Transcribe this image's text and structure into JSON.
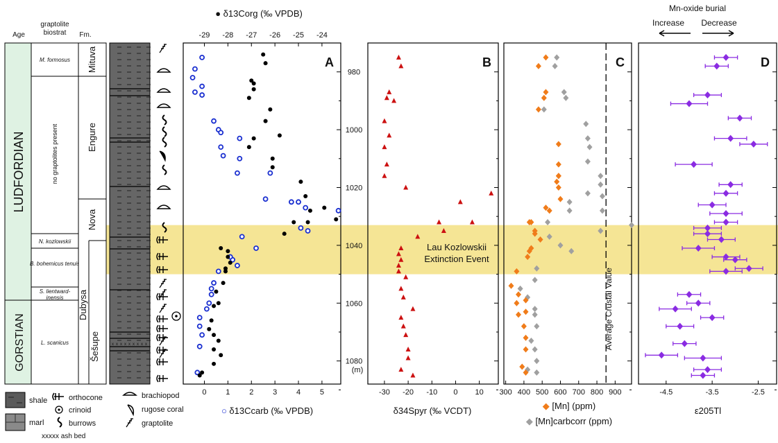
{
  "column_headers": {
    "age": "Age",
    "graptolite": [
      "graptolite",
      "biostrat"
    ],
    "formation": "Fm."
  },
  "ages": [
    "LUDFORDIAN",
    "GORSTIAN"
  ],
  "graptolite_zones": [
    "M. formosus",
    "no graptolites present",
    "N. kozlowskii",
    "B. bohemicus tenuis",
    "S. lientward-",
    "inensis",
    "L. scanicus"
  ],
  "formations": [
    "Mituva",
    "Engure",
    "Nova",
    "Dubysa",
    "Šešupe"
  ],
  "legend": {
    "shale": "shale",
    "marl": "marl",
    "orthocone": "orthocone",
    "crinoid": "crinoid",
    "burrows": "burrows",
    "ash_bed": "xxxxx ash bed",
    "brachiopod": "brachiopod",
    "rugose_coral": "rugose coral",
    "graptolite": "graptolite"
  },
  "depth_axis": {
    "ticks": [
      "980",
      "1000",
      "1020",
      "1040",
      "1060",
      "1080"
    ],
    "unit": "(m)"
  },
  "event": {
    "line1": "Lau Kozlowskii",
    "line2": "Extinction Event",
    "depth_range": [
      1033,
      1050
    ]
  },
  "crustal_label": "Average Crustal Value",
  "mn_oxide": {
    "title": "Mn-oxide burial",
    "increase": "Increase",
    "decrease": "Decrease"
  },
  "colors": {
    "corg": "#000000",
    "ccarb": "#1a2fd0",
    "spyr": "#cc1111",
    "mn": "#f07c1a",
    "mncorr": "#a0a0a0",
    "tl": "#8a2be2",
    "event_band": "#f3df7a",
    "age_fill": "#dff2e3"
  },
  "chart_data": [
    {
      "type": "scatter",
      "panel": "A",
      "xlabel": "δ13Ccarb (‰ VPDB)",
      "x2label": "δ13Corg (‰ VPDB)",
      "xticks": [
        "0",
        "1",
        "2",
        "3",
        "4",
        "5"
      ],
      "x2ticks": [
        "-29",
        "-28",
        "-27",
        "-26",
        "-25",
        "-24"
      ],
      "xlim": [
        -0.9,
        5.8
      ],
      "x2lim": [
        -29.9,
        -23.2
      ],
      "ylim": [
        1088,
        970
      ],
      "series": [
        {
          "name": "δ13Ccarb",
          "x": [
            -0.1,
            -0.4,
            -0.5,
            -0.1,
            -0.4,
            -0.1,
            0.4,
            0.6,
            0.7,
            1.5,
            0.7,
            0.8,
            1.5,
            1.4,
            2.8,
            2.6,
            3.7,
            4.0,
            4.3,
            5.7,
            4.1,
            4.4,
            1.6,
            2.2,
            1.2,
            1.1,
            1.4,
            0.6,
            0.4,
            0.3,
            0.3,
            0.2,
            0.1,
            -0.2,
            -0.2,
            -0.1,
            -0.2,
            -0.3
          ],
          "y": [
            975,
            979,
            982,
            985,
            987,
            988,
            997,
            1000,
            1001,
            1003,
            1006,
            1009,
            1010,
            1015,
            1015,
            1024,
            1025,
            1025,
            1027,
            1028,
            1034,
            1035,
            1037,
            1041,
            1045,
            1044,
            1047,
            1049,
            1053,
            1055,
            1057,
            1060,
            1062,
            1065,
            1068,
            1071,
            1075,
            1084
          ]
        },
        {
          "name": "δ13Corg",
          "x": [
            -26.5,
            -26.4,
            -27.0,
            -26.9,
            -26.9,
            -27.1,
            -26.2,
            -26.4,
            -25.8,
            -26.9,
            -27.1,
            -26.1,
            -26.1,
            -24.9,
            -24.7,
            -24.5,
            -23.9,
            -25.2,
            -24.6,
            -23.4,
            -25.6,
            -28.3,
            -28.0,
            -27.9,
            -28.0,
            -28.1,
            -28.1,
            -28.2,
            -28.5,
            -28.4,
            -28.6,
            -28.7,
            -28.8,
            -28.6,
            -28.4,
            -28.6,
            -28.3,
            -28.6,
            -29.1,
            -29.2
          ],
          "y": [
            974,
            977,
            983,
            984,
            986,
            989,
            993,
            997,
            1002,
            1003,
            1006,
            1010,
            1013,
            1018,
            1023,
            1028,
            1027,
            1032,
            1032,
            1031,
            1036,
            1041,
            1044,
            1046,
            1042,
            1048,
            1049,
            1053,
            1056,
            1060,
            1061,
            1066,
            1069,
            1071,
            1073,
            1076,
            1078,
            1081,
            1084,
            1085
          ]
        }
      ]
    },
    {
      "type": "scatter",
      "panel": "B",
      "xlabel": "δ34Spyr (‰ VCDT)",
      "xticks": [
        "-30",
        "-20",
        "-10",
        "0",
        "10"
      ],
      "xlim": [
        -37,
        18
      ],
      "ylim": [
        1088,
        970
      ],
      "series": [
        {
          "name": "δ34Spyr",
          "x": [
            -24,
            -23,
            -28,
            -29,
            -26,
            -30,
            -28,
            -30,
            -29,
            -30,
            -21,
            15,
            2,
            7,
            -7,
            -5,
            -16,
            -24,
            -23,
            -23,
            -24,
            -24,
            -21,
            -23,
            -22,
            -18,
            -23,
            -22,
            -21,
            -20,
            -20,
            -23,
            -18
          ],
          "y": [
            975,
            978,
            987,
            989,
            990,
            997,
            1002,
            1006,
            1012,
            1016,
            1020,
            1022,
            1025,
            1032,
            1032,
            1035,
            1037,
            1043,
            1041,
            1045,
            1047,
            1049,
            1051,
            1055,
            1058,
            1062,
            1065,
            1068,
            1071,
            1076,
            1079,
            1083,
            1085
          ]
        }
      ]
    },
    {
      "type": "scatter",
      "panel": "C",
      "xlabel": "[Mn] (ppm)",
      "x2label": "[Mn]carbcorr (ppm)",
      "xticks": [
        "300",
        "400",
        "500",
        "600",
        "700",
        "800",
        "900"
      ],
      "xlim": [
        290,
        990
      ],
      "ylim": [
        1088,
        970
      ],
      "series": [
        {
          "name": "[Mn]",
          "x": [
            520,
            480,
            520,
            510,
            480,
            590,
            590,
            590,
            590,
            580,
            590,
            600,
            540,
            520,
            430,
            440,
            460,
            490,
            460,
            440,
            430,
            420,
            360,
            330,
            370,
            360,
            410,
            370,
            410,
            400,
            410,
            410,
            390,
            410
          ],
          "y": [
            975,
            978,
            987,
            989,
            993,
            1005,
            1012,
            1016,
            1016,
            1018,
            1020,
            1024,
            1028,
            1027,
            1032,
            1032,
            1035,
            1038,
            1036,
            1041,
            1042,
            1044,
            1049,
            1054,
            1057,
            1060,
            1059,
            1064,
            1063,
            1068,
            1072,
            1076,
            1082,
            1084
          ],
          "marker": "diamond"
        },
        {
          "name": "[Mn]carbcorr",
          "x": [
            580,
            570,
            620,
            630,
            510,
            740,
            750,
            760,
            750,
            820,
            820,
            830,
            830,
            750,
            650,
            530,
            650,
            990,
            820,
            540,
            600,
            660,
            470,
            460,
            380,
            420,
            460,
            460,
            470,
            440,
            460,
            470,
            420,
            470
          ],
          "y": [
            975,
            978,
            987,
            989,
            993,
            998,
            1003,
            1006,
            1011,
            1016,
            1019,
            1023,
            1028,
            1022,
            1025,
            1032,
            1028,
            1033,
            1035,
            1037,
            1040,
            1042,
            1048,
            1052,
            1055,
            1058,
            1062,
            1064,
            1068,
            1073,
            1076,
            1080,
            1083,
            1084
          ],
          "marker": "diamond"
        }
      ],
      "reference_line": {
        "x": 850,
        "label": "Average Crustal Value"
      }
    },
    {
      "type": "scatter",
      "panel": "D",
      "xlabel": "ε205Tl",
      "xticks": [
        "-4.5",
        "-3.5",
        "-2.5"
      ],
      "xlim": [
        -5.1,
        -2.1
      ],
      "ylim": [
        1088,
        970
      ],
      "series": [
        {
          "name": "ε205Tl",
          "x": [
            -3.2,
            -3.4,
            -3.6,
            -4.0,
            -2.9,
            -3.1,
            -2.6,
            -3.9,
            -3.1,
            -3.2,
            -3.5,
            -3.2,
            -3.2,
            -3.6,
            -3.6,
            -3.3,
            -3.8,
            -3.2,
            -3.0,
            -2.7,
            -3.2,
            -4.0,
            -3.8,
            -4.3,
            -3.5,
            -4.2,
            -4.1,
            -4.6,
            -3.7,
            -3.6,
            -3.7
          ],
          "y": [
            975,
            978,
            988,
            991,
            996,
            1003,
            1005,
            1012,
            1019,
            1022,
            1026,
            1029,
            1032,
            1036,
            1034,
            1038,
            1041,
            1044,
            1045,
            1048,
            1049,
            1057,
            1060,
            1062,
            1065,
            1068,
            1074,
            1078,
            1079,
            1083,
            1085
          ],
          "xerr": [
            0.25,
            0.25,
            0.3,
            0.4,
            0.25,
            0.35,
            0.3,
            0.4,
            0.25,
            0.25,
            0.3,
            0.35,
            0.25,
            0.3,
            0.3,
            0.3,
            0.35,
            0.3,
            0.25,
            0.3,
            0.35,
            0.25,
            0.25,
            0.35,
            0.25,
            0.3,
            0.25,
            0.35,
            0.4,
            0.3,
            0.25
          ]
        }
      ]
    }
  ]
}
